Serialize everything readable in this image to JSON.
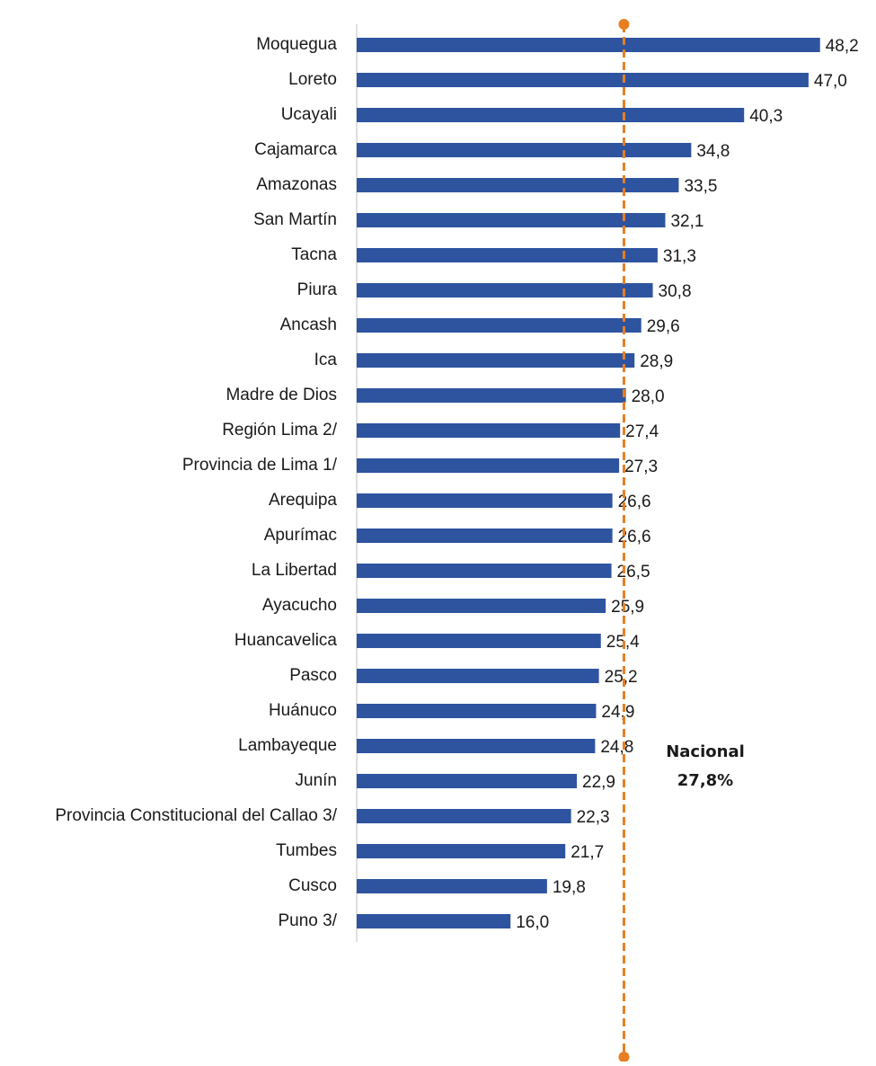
{
  "chart_data": {
    "type": "bar",
    "orientation": "horizontal",
    "color": "#2e54a0",
    "categories": [
      "Moquegua",
      "Loreto",
      "Ucayali",
      "Cajamarca",
      "Amazonas",
      "San Martín",
      "Tacna",
      "Piura",
      "Ancash",
      "Ica",
      "Madre de Dios",
      "Región Lima 2/",
      "Provincia de Lima 1/",
      "Arequipa",
      "Apurímac",
      "La Libertad",
      "Ayacucho",
      "Huancavelica",
      "Pasco",
      "Huánuco",
      "Lambayeque",
      "Junín",
      "Provincia Constitucional del Callao 3/",
      "Tumbes",
      "Cusco",
      "Puno 3/"
    ],
    "values": [
      48.2,
      47.0,
      40.3,
      34.8,
      33.5,
      32.1,
      31.3,
      30.8,
      29.6,
      28.9,
      28.0,
      27.4,
      27.3,
      26.6,
      26.6,
      26.5,
      25.9,
      25.4,
      25.2,
      24.9,
      24.8,
      22.9,
      22.3,
      21.7,
      19.8,
      16.0
    ],
    "value_labels": [
      "48,2",
      "47,0",
      "40,3",
      "34,8",
      "33,5",
      "32,1",
      "31,3",
      "30,8",
      "29,6",
      "28,9",
      "28,0",
      "27,4",
      "27,3",
      "26,6",
      "26,6",
      "26,5",
      "25,9",
      "25,4",
      "25,2",
      "24,9",
      "24,8",
      "22,9",
      "22,3",
      "21,7",
      "19,8",
      "16,0"
    ],
    "xlim": [
      0,
      50
    ],
    "reference_line": {
      "value": 27.8,
      "color": "#e87e22",
      "label": "Nacional",
      "value_label": "27,8%"
    }
  }
}
